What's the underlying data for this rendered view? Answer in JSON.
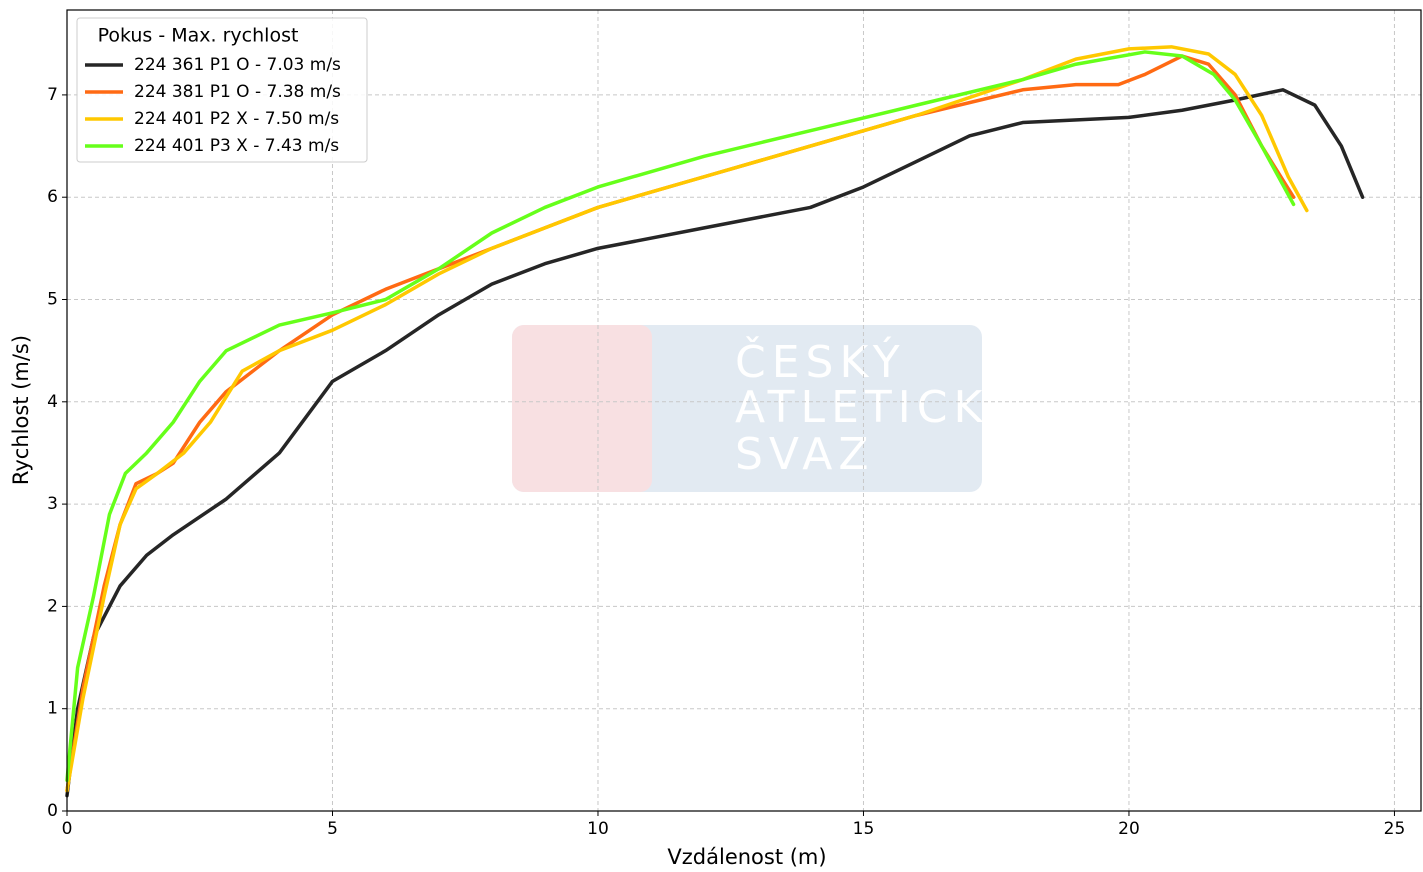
{
  "chart_data": {
    "type": "line",
    "xlabel": "Vzdálenost (m)",
    "ylabel": "Rychlost (m/s)",
    "legend_title": "Pokus - Max. rychlost",
    "legend": "upper left",
    "grid": true,
    "watermark": [
      "ČESKÝ",
      "ATLETICKÝ",
      "SVAZ"
    ],
    "xlim": [
      0,
      25.5
    ],
    "xticks": [
      0,
      5,
      10,
      15,
      20,
      25
    ],
    "ylim": [
      0,
      7.83
    ],
    "yticks": [
      0,
      1,
      2,
      3,
      4,
      5,
      6,
      7
    ],
    "series": [
      {
        "name": "224 361 P1 O - 7.03 m/s",
        "color": "#262626",
        "x": [
          0,
          0.2,
          0.5,
          1,
          1.5,
          2,
          3,
          4,
          4.5,
          5,
          6,
          7,
          8,
          9,
          10,
          12,
          14,
          15,
          16,
          17,
          18,
          20,
          21,
          22,
          22.9,
          23.5,
          24,
          24.4
        ],
        "values": [
          0.15,
          1.0,
          1.7,
          2.2,
          2.5,
          2.7,
          3.05,
          3.5,
          3.85,
          4.2,
          4.5,
          4.85,
          5.15,
          5.35,
          5.5,
          5.7,
          5.9,
          6.1,
          6.35,
          6.6,
          6.73,
          6.78,
          6.85,
          6.95,
          7.05,
          6.9,
          6.5,
          6.0
        ]
      },
      {
        "name": "224 381 P1 O - 7.38 m/s",
        "color": "#ff6a13",
        "x": [
          0,
          0.3,
          0.7,
          1,
          1.3,
          1.7,
          2,
          2.5,
          3,
          4,
          5,
          6,
          7,
          8,
          9,
          10,
          12,
          14,
          16,
          18,
          19,
          19.8,
          20.3,
          21,
          21.5,
          22,
          22.5,
          23.1
        ],
        "values": [
          0.2,
          1.2,
          2.2,
          2.8,
          3.2,
          3.3,
          3.4,
          3.8,
          4.1,
          4.5,
          4.85,
          5.1,
          5.3,
          5.5,
          5.7,
          5.9,
          6.2,
          6.5,
          6.8,
          7.05,
          7.1,
          7.1,
          7.2,
          7.38,
          7.3,
          7.0,
          6.5,
          6.0
        ]
      },
      {
        "name": "224 401 P2 X - 7.50 m/s",
        "color": "#ffc800",
        "x": [
          0,
          0.3,
          0.7,
          1,
          1.3,
          1.7,
          2.2,
          2.7,
          3.3,
          4,
          5,
          6,
          7,
          8,
          9,
          10,
          12,
          14,
          16,
          18,
          19,
          20,
          20.8,
          21.5,
          22,
          22.5,
          23,
          23.35
        ],
        "values": [
          0.2,
          1.1,
          2.1,
          2.8,
          3.15,
          3.3,
          3.5,
          3.8,
          4.3,
          4.5,
          4.7,
          4.95,
          5.25,
          5.5,
          5.7,
          5.9,
          6.2,
          6.5,
          6.8,
          7.15,
          7.35,
          7.45,
          7.47,
          7.4,
          7.2,
          6.8,
          6.2,
          5.87
        ]
      },
      {
        "name": "224 401 P3 X - 7.43 m/s",
        "color": "#66ff1a",
        "x": [
          0,
          0.2,
          0.5,
          0.8,
          1.1,
          1.5,
          2,
          2.5,
          3,
          4,
          5,
          6,
          7,
          8,
          9,
          10,
          12,
          14,
          16,
          18,
          19,
          20.3,
          21,
          21.6,
          22,
          22.5,
          23.1
        ],
        "values": [
          0.3,
          1.4,
          2.1,
          2.9,
          3.3,
          3.5,
          3.8,
          4.2,
          4.5,
          4.75,
          4.87,
          5.0,
          5.3,
          5.65,
          5.9,
          6.1,
          6.4,
          6.65,
          6.9,
          7.15,
          7.3,
          7.42,
          7.38,
          7.2,
          6.95,
          6.5,
          5.93
        ]
      }
    ]
  }
}
